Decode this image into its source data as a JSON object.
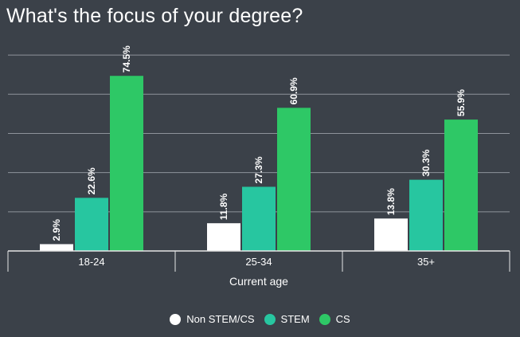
{
  "chart_data": {
    "type": "bar",
    "title": "What's the focus of your degree?",
    "xlabel": "Current age",
    "ylabel": "",
    "categories": [
      "18-24",
      "25-34",
      "35+"
    ],
    "series": [
      {
        "name": "Non STEM/CS",
        "values": [
          2.9,
          11.8,
          13.8
        ],
        "labels": [
          "2.9%",
          "11.8%",
          "13.8%"
        ],
        "color": "#ffffff"
      },
      {
        "name": "STEM",
        "values": [
          22.6,
          27.3,
          30.3
        ],
        "labels": [
          "22.6%",
          "27.3%",
          "30.3%"
        ],
        "color": "#27c6a0"
      },
      {
        "name": "CS",
        "values": [
          74.5,
          60.9,
          55.9
        ],
        "labels": [
          "74.5%",
          "60.9%",
          "55.9%"
        ],
        "color": "#2ec866"
      }
    ],
    "ylim": [
      0,
      100
    ],
    "grid": true,
    "legend_position": "bottom"
  },
  "colors": {
    "background": "#3b4149",
    "gridline": "#8e939a",
    "axis": "#e6e6e6",
    "text": "#ffffff"
  }
}
